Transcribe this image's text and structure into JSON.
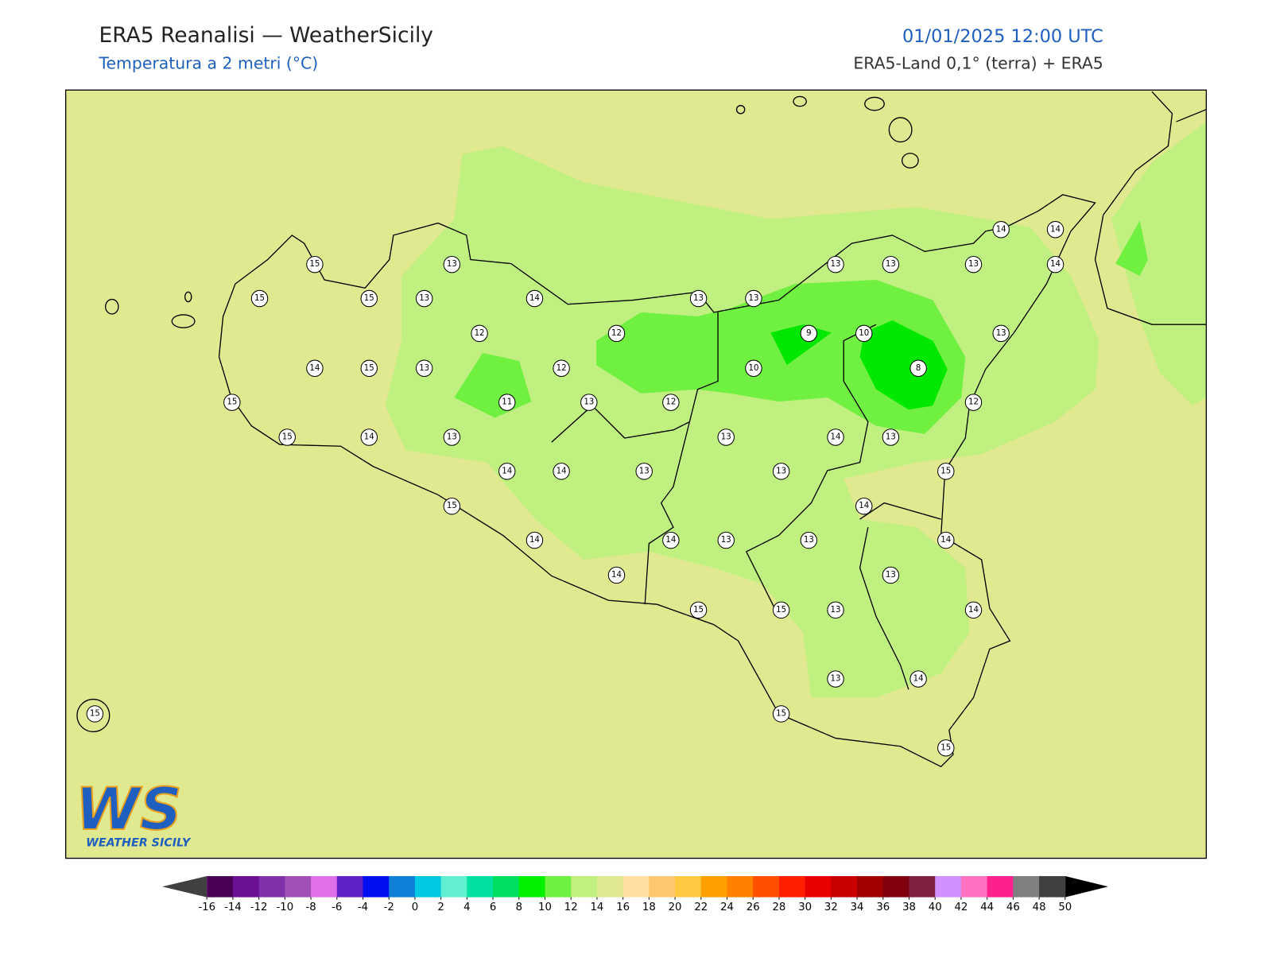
{
  "header": {
    "title": "ERA5 Reanalisi — WeatherSicily",
    "subtitle": "Temperatura a 2 metri (°C)",
    "datetime": "01/01/2025 12:00 UTC",
    "source": "ERA5-Land 0,1° (terra) + ERA5"
  },
  "logo": {
    "text": "WS",
    "caption": "WEATHER SICILY"
  },
  "map": {
    "stations": [
      15,
      13,
      15,
      15,
      13,
      14,
      13,
      13,
      13,
      13,
      13,
      14,
      14,
      14,
      12,
      12,
      9,
      10,
      13,
      14,
      15,
      13,
      12,
      10,
      8,
      15,
      11,
      13,
      12,
      12,
      15,
      14,
      13,
      13,
      14,
      13,
      14,
      14,
      13,
      13,
      15,
      15,
      14,
      14,
      14,
      13,
      13,
      14,
      14,
      13,
      15,
      15,
      13,
      14,
      13,
      14,
      15,
      15,
      15
    ]
  },
  "colorbar": {
    "ticks": [
      -16,
      -14,
      -12,
      -10,
      -8,
      -6,
      -4,
      -2,
      0,
      2,
      4,
      6,
      8,
      10,
      12,
      14,
      16,
      18,
      20,
      22,
      24,
      26,
      28,
      30,
      32,
      34,
      36,
      38,
      40,
      42,
      44,
      46,
      48,
      50
    ],
    "colors": [
      "#4a0055",
      "#6a1090",
      "#8030a8",
      "#a050b8",
      "#e070e8",
      "#6020c8",
      "#0010f0",
      "#1080d8",
      "#00c8e0",
      "#60f0d0",
      "#00e0a0",
      "#00e060",
      "#00f000",
      "#70f040",
      "#c0f080",
      "#e0e890",
      "#ffe0a0",
      "#ffc870",
      "#ffc840",
      "#ffa000",
      "#ff8000",
      "#ff5000",
      "#ff2000",
      "#e80000",
      "#c80000",
      "#a00000",
      "#800010",
      "#802040",
      "#d090ff",
      "#ff70c0",
      "#ff2090",
      "#808080",
      "#404040"
    ],
    "under_color": "#404040",
    "over_color": "#000000"
  }
}
